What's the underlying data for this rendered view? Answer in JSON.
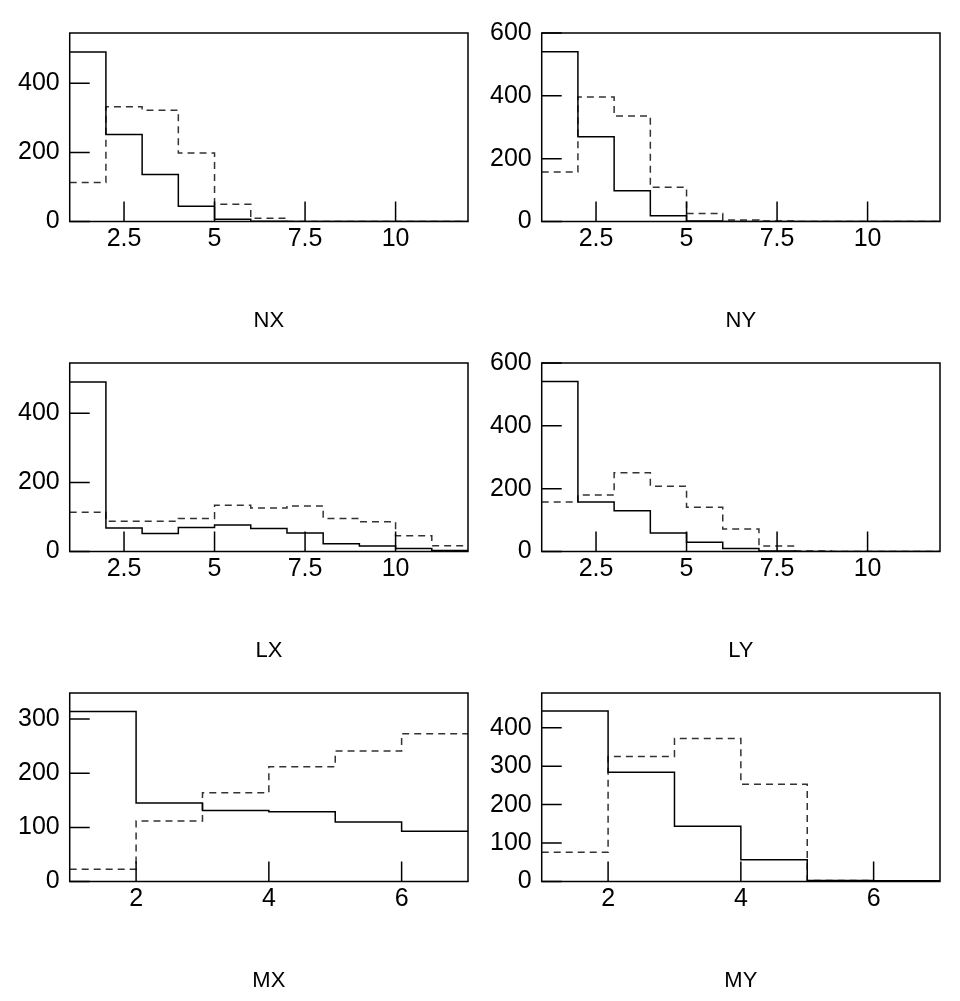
{
  "chart_data": [
    {
      "type": "histogram",
      "xlabel": "NX",
      "bins": [
        1,
        2,
        3,
        4,
        5,
        6,
        7,
        8,
        9,
        10,
        11,
        12
      ],
      "xlim": [
        1,
        12
      ],
      "ylim": [
        0,
        545
      ],
      "xticks": [
        2.5,
        5,
        7.5,
        10
      ],
      "yticks": [
        0,
        200,
        400
      ],
      "series": [
        {
          "color": "#000000",
          "line_style": "solid",
          "values": [
            490,
            252,
            136,
            44,
            7,
            1,
            0,
            0,
            0,
            0,
            0
          ]
        },
        {
          "color": "#333333",
          "line_style": "dashed",
          "values": [
            113,
            332,
            322,
            198,
            50,
            10,
            0,
            0,
            0,
            0,
            0
          ]
        }
      ]
    },
    {
      "type": "histogram",
      "xlabel": "NY",
      "bins": [
        1,
        2,
        3,
        4,
        5,
        6,
        7,
        8,
        9,
        10,
        11,
        12
      ],
      "xlim": [
        1,
        12
      ],
      "ylim": [
        0,
        600
      ],
      "xticks": [
        2.5,
        5,
        7.5,
        10
      ],
      "yticks": [
        0,
        200,
        400,
        600
      ],
      "series": [
        {
          "color": "#000000",
          "line_style": "solid",
          "values": [
            540,
            270,
            98,
            19,
            2,
            0,
            0,
            0,
            0,
            0,
            0
          ]
        },
        {
          "color": "#333333",
          "line_style": "dashed",
          "values": [
            158,
            396,
            336,
            109,
            26,
            5,
            2,
            0,
            0,
            0,
            0
          ]
        }
      ]
    },
    {
      "type": "histogram",
      "xlabel": "LX",
      "bins": [
        1,
        2,
        3,
        4,
        5,
        6,
        7,
        8,
        9,
        10,
        11,
        12
      ],
      "xlim": [
        1,
        12
      ],
      "ylim": [
        0,
        545
      ],
      "xticks": [
        2.5,
        5,
        7.5,
        10
      ],
      "yticks": [
        0,
        200,
        400
      ],
      "series": [
        {
          "color": "#000000",
          "line_style": "solid",
          "values": [
            490,
            68,
            52,
            70,
            77,
            67,
            54,
            23,
            16,
            9,
            3
          ]
        },
        {
          "color": "#333333",
          "line_style": "dashed",
          "values": [
            114,
            88,
            88,
            96,
            134,
            126,
            132,
            96,
            86,
            46,
            17
          ]
        }
      ]
    },
    {
      "type": "histogram",
      "xlabel": "LY",
      "bins": [
        1,
        2,
        3,
        4,
        5,
        6,
        7,
        8,
        9,
        10,
        11,
        12
      ],
      "xlim": [
        1,
        12
      ],
      "ylim": [
        0,
        600
      ],
      "xticks": [
        2.5,
        5,
        7.5,
        10
      ],
      "yticks": [
        0,
        200,
        400,
        600
      ],
      "series": [
        {
          "color": "#000000",
          "line_style": "solid",
          "values": [
            541,
            158,
            130,
            59,
            30,
            10,
            2,
            0,
            0,
            0,
            0
          ]
        },
        {
          "color": "#333333",
          "line_style": "dashed",
          "values": [
            158,
            180,
            251,
            208,
            141,
            72,
            18,
            2,
            0,
            0,
            0
          ]
        }
      ]
    },
    {
      "type": "histogram",
      "xlabel": "MX",
      "bins": [
        1,
        2,
        3,
        4,
        5,
        6,
        7
      ],
      "xlim": [
        1,
        7
      ],
      "ylim": [
        0,
        348
      ],
      "xticks": [
        2,
        4,
        6
      ],
      "yticks": [
        0,
        100,
        200,
        300
      ],
      "series": [
        {
          "color": "#000000",
          "line_style": "solid",
          "values": [
            314,
            145,
            131,
            129,
            110,
            93
          ]
        },
        {
          "color": "#333333",
          "line_style": "dashed",
          "values": [
            23,
            112,
            164,
            212,
            241,
            273
          ]
        }
      ]
    },
    {
      "type": "histogram",
      "xlabel": "MY",
      "bins": [
        1,
        2,
        3,
        4,
        5,
        6,
        7
      ],
      "xlim": [
        1,
        7
      ],
      "ylim": [
        0,
        490
      ],
      "xticks": [
        2,
        4,
        6
      ],
      "yticks": [
        0,
        100,
        200,
        300,
        400
      ],
      "series": [
        {
          "color": "#000000",
          "line_style": "solid",
          "values": [
            443,
            284,
            144,
            57,
            3,
            2
          ]
        },
        {
          "color": "#333333",
          "line_style": "dashed",
          "values": [
            76,
            325,
            372,
            253,
            3,
            1
          ]
        }
      ]
    }
  ]
}
